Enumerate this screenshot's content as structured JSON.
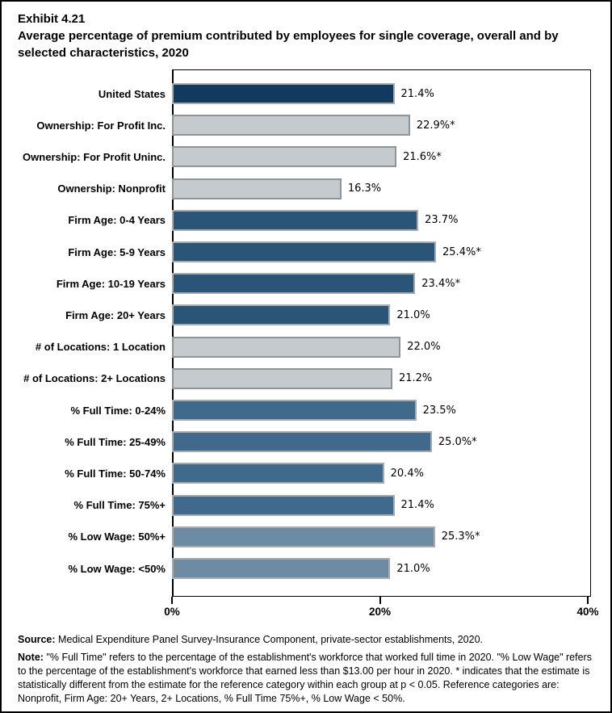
{
  "title": {
    "exhibit": "Exhibit 4.21",
    "text": "Average percentage of premium contributed by employees for single coverage, overall and by selected characteristics, 2020"
  },
  "chart_data": {
    "type": "bar",
    "orientation": "horizontal",
    "title": "Average percentage of premium contributed by employees for single coverage, overall and by selected characteristics, 2020",
    "xlabel": "",
    "ylabel": "",
    "xlim": [
      0,
      40
    ],
    "x_ticks": [
      {
        "value": 0,
        "label": "0%"
      },
      {
        "value": 20,
        "label": "20%"
      },
      {
        "value": 40,
        "label": "40%"
      }
    ],
    "grid": false,
    "legend": "none",
    "items": [
      {
        "label": "United States",
        "value": 21.4,
        "value_label": "21.4%",
        "group": "united_states"
      },
      {
        "label": "Ownership: For Profit Inc.",
        "value": 22.9,
        "value_label": "22.9%*",
        "group": "ownership"
      },
      {
        "label": "Ownership: For Profit Uninc.",
        "value": 21.6,
        "value_label": "21.6%*",
        "group": "ownership"
      },
      {
        "label": "Ownership: Nonprofit",
        "value": 16.3,
        "value_label": "16.3%",
        "group": "ownership"
      },
      {
        "label": "Firm Age: 0-4 Years",
        "value": 23.7,
        "value_label": "23.7%",
        "group": "firm_age"
      },
      {
        "label": "Firm Age: 5-9 Years",
        "value": 25.4,
        "value_label": "25.4%*",
        "group": "firm_age"
      },
      {
        "label": "Firm Age: 10-19 Years",
        "value": 23.4,
        "value_label": "23.4%*",
        "group": "firm_age"
      },
      {
        "label": "Firm Age: 20+ Years",
        "value": 21.0,
        "value_label": "21.0%",
        "group": "firm_age"
      },
      {
        "label": "# of Locations: 1 Location",
        "value": 22.0,
        "value_label": "22.0%",
        "group": "locations"
      },
      {
        "label": "# of Locations: 2+ Locations",
        "value": 21.2,
        "value_label": "21.2%",
        "group": "locations"
      },
      {
        "label": "% Full Time: 0-24%",
        "value": 23.5,
        "value_label": "23.5%",
        "group": "full_time"
      },
      {
        "label": "% Full Time: 25-49%",
        "value": 25.0,
        "value_label": "25.0%*",
        "group": "full_time"
      },
      {
        "label": "% Full Time: 50-74%",
        "value": 20.4,
        "value_label": "20.4%",
        "group": "full_time"
      },
      {
        "label": "% Full Time: 75%+",
        "value": 21.4,
        "value_label": "21.4%",
        "group": "full_time"
      },
      {
        "label": "% Low Wage: 50%+",
        "value": 25.3,
        "value_label": "25.3%*",
        "group": "low_wage"
      },
      {
        "label": "% Low Wage: <50%",
        "value": 21.0,
        "value_label": "21.0%",
        "group": "low_wage"
      }
    ],
    "group_colors": {
      "united_states": "#123A5F",
      "ownership": "#C5CACF",
      "firm_age": "#2A5577",
      "locations": "#C5CACF",
      "full_time": "#406A8C",
      "low_wage": "#6D8CA4"
    },
    "border_colors": {
      "united_states": "#A6ABB0",
      "ownership": "#8F9499",
      "firm_age": "#A6ABB0",
      "locations": "#8F9499",
      "full_time": "#A6ABB0",
      "low_wage": "#A6ABB0"
    },
    "axis_color": "#000000"
  },
  "footer": {
    "source_label": "Source:",
    "source_text": "Medical Expenditure Panel Survey-Insurance Component, private-sector establishments, 2020.",
    "note_label": "Note:",
    "note_text": "\"% Full Time\" refers to the percentage of the establishment's workforce that worked full time in 2020. \"% Low Wage\" refers to the percentage of the establishment's workforce that earned less than $13.00 per hour in 2020. * indicates that the estimate is statistically different from the estimate for the reference category within each group at p < 0.05.  Reference categories are: Nonprofit, Firm Age: 20+ Years, 2+ Locations, % Full Time 75%+, % Low Wage < 50%."
  }
}
